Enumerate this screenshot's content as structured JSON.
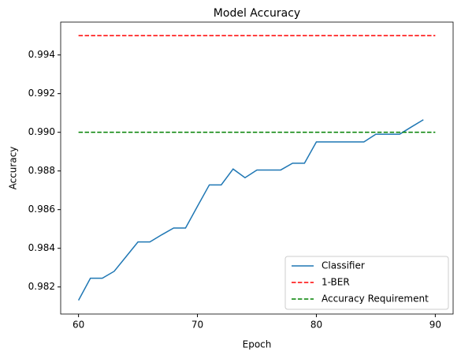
{
  "chart_data": {
    "type": "line",
    "title": "Model Accuracy",
    "x_label": "Epoch",
    "y_label": "Accuracy",
    "series": [
      {
        "name": "Classifier",
        "color": "#1f77b4",
        "style": "solid",
        "x": [
          60,
          61,
          62,
          63,
          64,
          65,
          66,
          67,
          68,
          69,
          70,
          71,
          72,
          73,
          74,
          75,
          76,
          77,
          78,
          79,
          80,
          81,
          82,
          83,
          84,
          85,
          86,
          87,
          88,
          89
        ],
        "values": [
          0.98131,
          0.98245,
          0.98245,
          0.98281,
          0.98357,
          0.98433,
          0.98433,
          0.9847,
          0.98505,
          0.98505,
          0.98617,
          0.98728,
          0.98728,
          0.9881,
          0.98765,
          0.98805,
          0.98805,
          0.98805,
          0.9884,
          0.9884,
          0.9895,
          0.9895,
          0.9895,
          0.9895,
          0.9895,
          0.9899,
          0.9899,
          0.9899,
          0.99028,
          0.99065
        ]
      },
      {
        "name": "1-BER",
        "color": "#ff0000",
        "style": "dashed",
        "x": [
          60,
          90
        ],
        "values": [
          0.995,
          0.995
        ]
      },
      {
        "name": "Accuracy Requirement",
        "color": "#008000",
        "style": "dashed",
        "x": [
          60,
          90
        ],
        "values": [
          0.99,
          0.99
        ]
      }
    ],
    "xlim": [
      58.5,
      91.5
    ],
    "xticks": [
      60,
      70,
      80,
      90
    ],
    "ylim": [
      0.9806,
      0.9957
    ],
    "yticks": [
      0.982,
      0.984,
      0.986,
      0.988,
      {
        "value": 0.99,
        "label": "0.990"
      },
      0.992,
      0.994
    ],
    "grid": false,
    "legend": "lower right"
  }
}
